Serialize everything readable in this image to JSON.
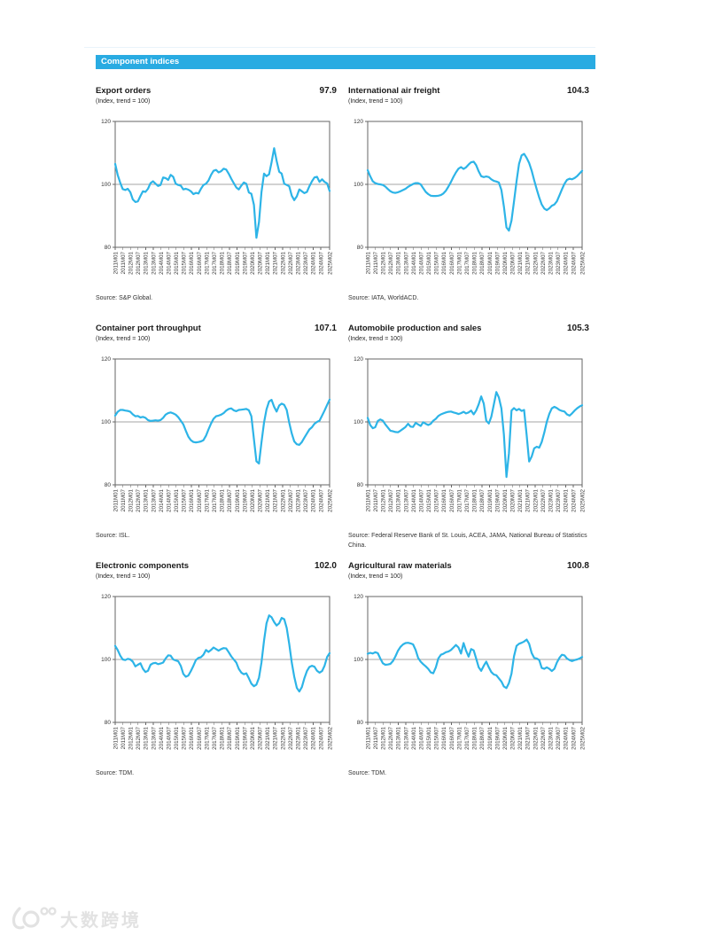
{
  "page": {
    "section_header": "Component indices",
    "watermark_text": "大数跨境",
    "colors": {
      "accent": "#29abe2",
      "line": "#2db4e7",
      "grid": "#a6a6a6",
      "axis": "#666666"
    }
  },
  "axis": {
    "y_ticks": [
      "120",
      "100",
      "80"
    ],
    "y_min": 80,
    "y_max": 120,
    "x_labels": [
      "2011M01",
      "2011M07",
      "2012M01",
      "2012M07",
      "2013M01",
      "2013M07",
      "2014M01",
      "2014M07",
      "2015M01",
      "2015M07",
      "2016M01",
      "2016M07",
      "2017M01",
      "2017M07",
      "2018M01",
      "2018M07",
      "2019M01",
      "2019M07",
      "2020M01",
      "2020M07",
      "2021M01",
      "2021M07",
      "2022M01",
      "2022M07",
      "2023M01",
      "2023M07",
      "2024M01",
      "2024M07",
      "2025M02"
    ]
  },
  "chart_data": [
    {
      "type": "line",
      "title": "Export orders",
      "value": "97.9",
      "subtitle": "(Index, trend = 100)",
      "source": "Source:  S&P Global.",
      "ylim": [
        80,
        120
      ],
      "values": [
        106.5,
        103,
        100.5,
        98.5,
        98.2,
        98.6,
        97.5,
        95.2,
        94.4,
        94.6,
        96.3,
        97.8,
        97.6,
        98.6,
        100.4,
        101,
        100.2,
        99.5,
        99.8,
        102.2,
        102,
        101.4,
        103,
        102.4,
        100.2,
        99.8,
        99.6,
        98.4,
        98.6,
        98.3,
        97.8,
        96.9,
        97.3,
        97.1,
        98.6,
        99.8,
        100.2,
        101.2,
        103,
        104.3,
        104.6,
        103.8,
        104.2,
        105,
        104.7,
        103.4,
        101.8,
        100.4,
        99,
        98.4,
        99.6,
        100.6,
        100.2,
        97.4,
        97,
        93.5,
        83,
        88,
        97.5,
        103.4,
        102.6,
        103.2,
        107,
        111.5,
        107.5,
        104,
        103.4,
        100.2,
        99.8,
        99.4,
        96.4,
        95,
        96.2,
        98.4,
        97.8,
        97.2,
        97.6,
        99.4,
        101,
        102.2,
        102.4,
        100.8,
        101.6,
        100.8,
        100.3,
        97.9
      ]
    },
    {
      "type": "line",
      "title": "International air freight",
      "value": "104.3",
      "subtitle": "(Index, trend = 100)",
      "source": "Source: IATA, WorldACD.",
      "ylim": [
        80,
        120
      ],
      "values": [
        104.5,
        102.6,
        101,
        100.4,
        100.1,
        100,
        99.8,
        99.3,
        98.5,
        97.8,
        97.4,
        97.3,
        97.5,
        97.8,
        98.2,
        98.6,
        99.2,
        99.7,
        100.1,
        100.4,
        100.4,
        100,
        98.8,
        97.6,
        96.9,
        96.4,
        96.3,
        96.3,
        96.4,
        96.6,
        97.1,
        98,
        99.3,
        100.8,
        102.4,
        103.8,
        105,
        105.5,
        104.9,
        105.4,
        106.3,
        107,
        107.2,
        106.1,
        104.1,
        102.6,
        102.3,
        102.5,
        102.3,
        101.6,
        101.1,
        100.9,
        100.6,
        98.2,
        93,
        86.3,
        85.3,
        88.5,
        94.5,
        101,
        106.5,
        109.2,
        109.7,
        108.4,
        106.8,
        104.3,
        101.3,
        98.4,
        95.8,
        93.6,
        92.3,
        91.8,
        92.4,
        93.2,
        93.6,
        94.6,
        96.5,
        98.4,
        100.2,
        101.4,
        101.8,
        101.6,
        102,
        102.6,
        103.5,
        104.3
      ]
    },
    {
      "type": "line",
      "title": "Container port throughput",
      "value": "107.1",
      "subtitle": "(Index, trend = 100)",
      "source": "Source: ISL.",
      "ylim": [
        80,
        120
      ],
      "values": [
        102,
        103.2,
        103.8,
        103.8,
        103.6,
        103.5,
        103.2,
        102.4,
        101.8,
        101.9,
        101.4,
        101.6,
        101.3,
        100.6,
        100.3,
        100.4,
        100.5,
        100.4,
        100.6,
        101.3,
        102.3,
        102.8,
        103,
        102.7,
        102.3,
        101.5,
        100.4,
        99.2,
        97.2,
        95.3,
        94.2,
        93.6,
        93.5,
        93.6,
        93.8,
        94.2,
        95.6,
        97.6,
        99.5,
        101,
        101.8,
        102,
        102.3,
        102.8,
        103.6,
        104.1,
        104.3,
        103.7,
        103.4,
        103.8,
        103.9,
        104,
        104.1,
        103.7,
        101.8,
        94.5,
        87.5,
        86.8,
        93.5,
        99.8,
        104,
        106.5,
        107,
        104.8,
        103.3,
        105.2,
        105.8,
        105.4,
        103.8,
        99.8,
        96.3,
        93.8,
        92.9,
        92.7,
        93.6,
        95,
        96.3,
        97.6,
        98.3,
        99.4,
        100,
        100.4,
        102,
        103.6,
        105.4,
        107.1
      ]
    },
    {
      "type": "line",
      "title": "Automobile production and sales",
      "value": "105.3",
      "subtitle": "(Index, trend = 100)",
      "source": "Source: Federal Reserve Bank of St. Louis, ACEA, JAMA, National Bureau of Statistics China.",
      "ylim": [
        80,
        120
      ],
      "values": [
        101.3,
        99,
        98,
        98.3,
        100.3,
        100.8,
        100.4,
        99.2,
        98.2,
        97.2,
        97,
        96.8,
        96.7,
        97.2,
        97.8,
        98.4,
        99.4,
        98.5,
        98.4,
        99.7,
        99.2,
        98.7,
        99.9,
        99.4,
        99,
        99.4,
        100.4,
        101,
        101.9,
        102.4,
        102.7,
        103,
        103.2,
        103.3,
        103,
        102.8,
        102.5,
        102.8,
        103.2,
        102.7,
        103,
        103.6,
        102.4,
        103.6,
        105.6,
        108.1,
        105.8,
        100.4,
        99.5,
        101.6,
        105.6,
        109.5,
        107.8,
        104.3,
        96,
        82.5,
        90,
        103.6,
        104.4,
        103.7,
        104.1,
        103.5,
        103.8,
        95.8,
        87.4,
        89,
        91.6,
        92.1,
        91.8,
        93.6,
        96.6,
        100,
        102.6,
        104.3,
        104.8,
        104.4,
        103.8,
        103.5,
        103.3,
        102.4,
        102,
        102.7,
        103.6,
        104.3,
        104.9,
        105.3
      ]
    },
    {
      "type": "line",
      "title": "Electronic components",
      "value": "102.0",
      "subtitle": "(Index, trend = 100)",
      "source": "Source:  TDM.",
      "ylim": [
        80,
        120
      ],
      "values": [
        104.3,
        103,
        101.2,
        100,
        99.8,
        100.2,
        100,
        99.3,
        97.8,
        98.3,
        98.8,
        97,
        96,
        96.4,
        98.3,
        98.8,
        98.9,
        98.5,
        98.7,
        99,
        100.3,
        101.3,
        101.2,
        100,
        99.7,
        99.4,
        98,
        95.4,
        94.5,
        94.9,
        96.3,
        98,
        99.8,
        100.5,
        100.7,
        101.5,
        103,
        102.4,
        103,
        103.8,
        103.3,
        102.8,
        103.3,
        103.6,
        103.5,
        102.3,
        101,
        100,
        99,
        97,
        95.8,
        95.3,
        95.6,
        94,
        92.3,
        91.5,
        92,
        94.2,
        99,
        106,
        111.5,
        114,
        113.4,
        111.9,
        110.8,
        111.5,
        113.2,
        112.8,
        110,
        105,
        99,
        94.5,
        91,
        89.8,
        91.2,
        94,
        96.3,
        97.6,
        98,
        97.7,
        96.4,
        95.8,
        96.3,
        98,
        100.8,
        102
      ]
    },
    {
      "type": "line",
      "title": "Agricultural raw materials",
      "value": "100.8",
      "subtitle": "(Index, trend = 100)",
      "source": "Source: TDM.",
      "ylim": [
        80,
        120
      ],
      "values": [
        101.8,
        102.1,
        101.9,
        102.3,
        102,
        100.3,
        98.8,
        98.3,
        98.4,
        98.6,
        99.5,
        101,
        102.8,
        104,
        104.8,
        105.2,
        105.3,
        105.1,
        104.8,
        103,
        100.5,
        99.3,
        98.5,
        97.8,
        97,
        95.9,
        95.6,
        97.5,
        100.3,
        101.5,
        101.8,
        102.3,
        102.5,
        103,
        103.8,
        104.6,
        103.8,
        101.9,
        105.2,
        102.8,
        100.9,
        103.3,
        102.9,
        100.3,
        97.5,
        96.4,
        98,
        99.3,
        97.5,
        96,
        95.2,
        95,
        94,
        93,
        91.4,
        90.9,
        92.5,
        95.5,
        101,
        104.3,
        105,
        105.3,
        105.7,
        106.3,
        105,
        102,
        100.5,
        100.3,
        99.8,
        97.3,
        97,
        97.5,
        97,
        96.3,
        97,
        99,
        100.5,
        101.5,
        101.3,
        100.3,
        99.8,
        99.5,
        99.8,
        100,
        100.3,
        100.8
      ]
    }
  ]
}
